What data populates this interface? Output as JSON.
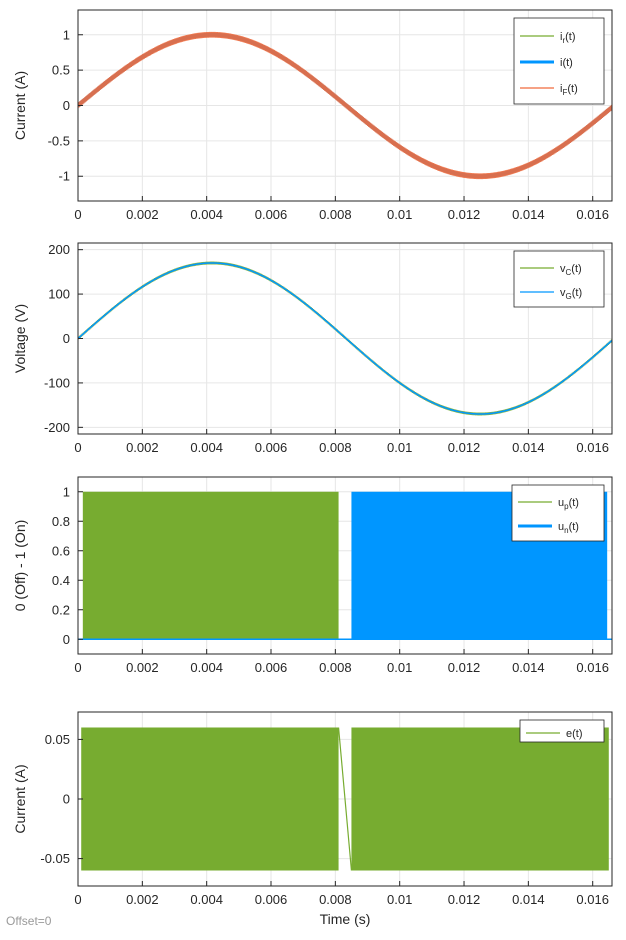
{
  "footer": {
    "offset_label": "Offset=0"
  },
  "colors": {
    "green": "#77AC30",
    "blue": "#0096FF",
    "orange": "#F06A3C",
    "grid": "#E6E6E6",
    "axis": "#262626"
  },
  "chart_data": [
    {
      "id": "current-plot",
      "type": "line",
      "ylabel": "Current (A)",
      "xlabel": "",
      "xlim": [
        0,
        0.0166
      ],
      "ylim": [
        -1.35,
        1.35
      ],
      "xticks": [
        0,
        0.002,
        0.004,
        0.006,
        0.008,
        0.01,
        0.012,
        0.014,
        0.016
      ],
      "xtick_labels": [
        "0",
        "0.002",
        "0.004",
        "0.006",
        "0.008",
        "0.01",
        "0.012",
        "0.014",
        "0.016"
      ],
      "yticks": [
        -1,
        -0.5,
        0,
        0.5,
        1
      ],
      "ytick_labels": [
        "-1",
        "-0.5",
        "0",
        "0.5",
        "1"
      ],
      "grid": true,
      "legend_position": "top-right",
      "series": [
        {
          "name": "i_r(t)",
          "base": "i",
          "sub": "r",
          "suffix": "(t)",
          "color": "#77AC30",
          "role": "sine",
          "amplitude": 1.0,
          "frequency_hz": 60
        },
        {
          "name": "i(t)",
          "base": "i",
          "sub": "",
          "suffix": "(t)",
          "color": "#0096FF",
          "role": "sine-thick",
          "amplitude": 1.0,
          "frequency_hz": 60
        },
        {
          "name": "i_F(t)",
          "base": "i",
          "sub": "F",
          "suffix": "(t)",
          "color": "#F06A3C",
          "role": "sine-ripple",
          "amplitude": 1.0,
          "ripple_amplitude": 0.04,
          "frequency_hz": 60
        }
      ]
    },
    {
      "id": "voltage-plot",
      "type": "line",
      "ylabel": "Voltage (V)",
      "xlabel": "",
      "xlim": [
        0,
        0.0166
      ],
      "ylim": [
        -215,
        215
      ],
      "xticks": [
        0,
        0.002,
        0.004,
        0.006,
        0.008,
        0.01,
        0.012,
        0.014,
        0.016
      ],
      "xtick_labels": [
        "0",
        "0.002",
        "0.004",
        "0.006",
        "0.008",
        "0.01",
        "0.012",
        "0.014",
        "0.016"
      ],
      "yticks": [
        -200,
        -100,
        0,
        100,
        200
      ],
      "ytick_labels": [
        "-200",
        "-100",
        "0",
        "100",
        "200"
      ],
      "grid": true,
      "legend_position": "top-right",
      "series": [
        {
          "name": "v_C(t)",
          "base": "v",
          "sub": "C",
          "suffix": "(t)",
          "color": "#77AC30",
          "role": "sine-ripple",
          "amplitude": 170,
          "ripple_amplitude": 3,
          "frequency_hz": 60
        },
        {
          "name": "v_G(t)",
          "base": "v",
          "sub": "G",
          "suffix": "(t)",
          "color": "#0096FF",
          "role": "sine",
          "amplitude": 170,
          "frequency_hz": 60
        }
      ]
    },
    {
      "id": "switching-plot",
      "type": "area",
      "ylabel": "0 (Off) - 1 (On)",
      "xlabel": "",
      "xlim": [
        0,
        0.0166
      ],
      "ylim": [
        -0.1,
        1.1
      ],
      "xticks": [
        0,
        0.002,
        0.004,
        0.006,
        0.008,
        0.01,
        0.012,
        0.014,
        0.016
      ],
      "xtick_labels": [
        "0",
        "0.002",
        "0.004",
        "0.006",
        "0.008",
        "0.01",
        "0.012",
        "0.014",
        "0.016"
      ],
      "yticks": [
        0,
        0.2,
        0.4,
        0.6,
        0.8,
        1
      ],
      "ytick_labels": [
        "0",
        "0.2",
        "0.4",
        "0.6",
        "0.8",
        "1"
      ],
      "grid": true,
      "legend_position": "top-right",
      "series": [
        {
          "name": "u_p(t)",
          "base": "u",
          "sub": "p",
          "suffix": "(t)",
          "color": "#77AC30",
          "role": "pwm",
          "on_interval": [
            0.00015,
            0.0081
          ],
          "low": 0,
          "high": 1
        },
        {
          "name": "u_n(t)",
          "base": "u",
          "sub": "n",
          "suffix": "(t)",
          "color": "#0096FF",
          "role": "pwm",
          "on_interval": [
            0.0085,
            0.01645
          ],
          "low": 0,
          "high": 1
        }
      ]
    },
    {
      "id": "error-plot",
      "type": "area",
      "ylabel": "Current (A)",
      "xlabel": "Time (s)",
      "xlim": [
        0,
        0.0166
      ],
      "ylim": [
        -0.073,
        0.073
      ],
      "xticks": [
        0,
        0.002,
        0.004,
        0.006,
        0.008,
        0.01,
        0.012,
        0.014,
        0.016
      ],
      "xtick_labels": [
        "0",
        "0.002",
        "0.004",
        "0.006",
        "0.008",
        "0.01",
        "0.012",
        "0.014",
        "0.016"
      ],
      "yticks": [
        -0.05,
        0,
        0.05
      ],
      "ytick_labels": [
        "-0.05",
        "0",
        "0.05"
      ],
      "grid": true,
      "legend_position": "top-right",
      "series": [
        {
          "name": "e(t)",
          "base": "e",
          "sub": "",
          "suffix": "(t)",
          "color": "#77AC30",
          "role": "band",
          "band": [
            -0.06,
            0.06
          ],
          "gap": [
            0.0081,
            0.0085
          ]
        }
      ]
    }
  ]
}
